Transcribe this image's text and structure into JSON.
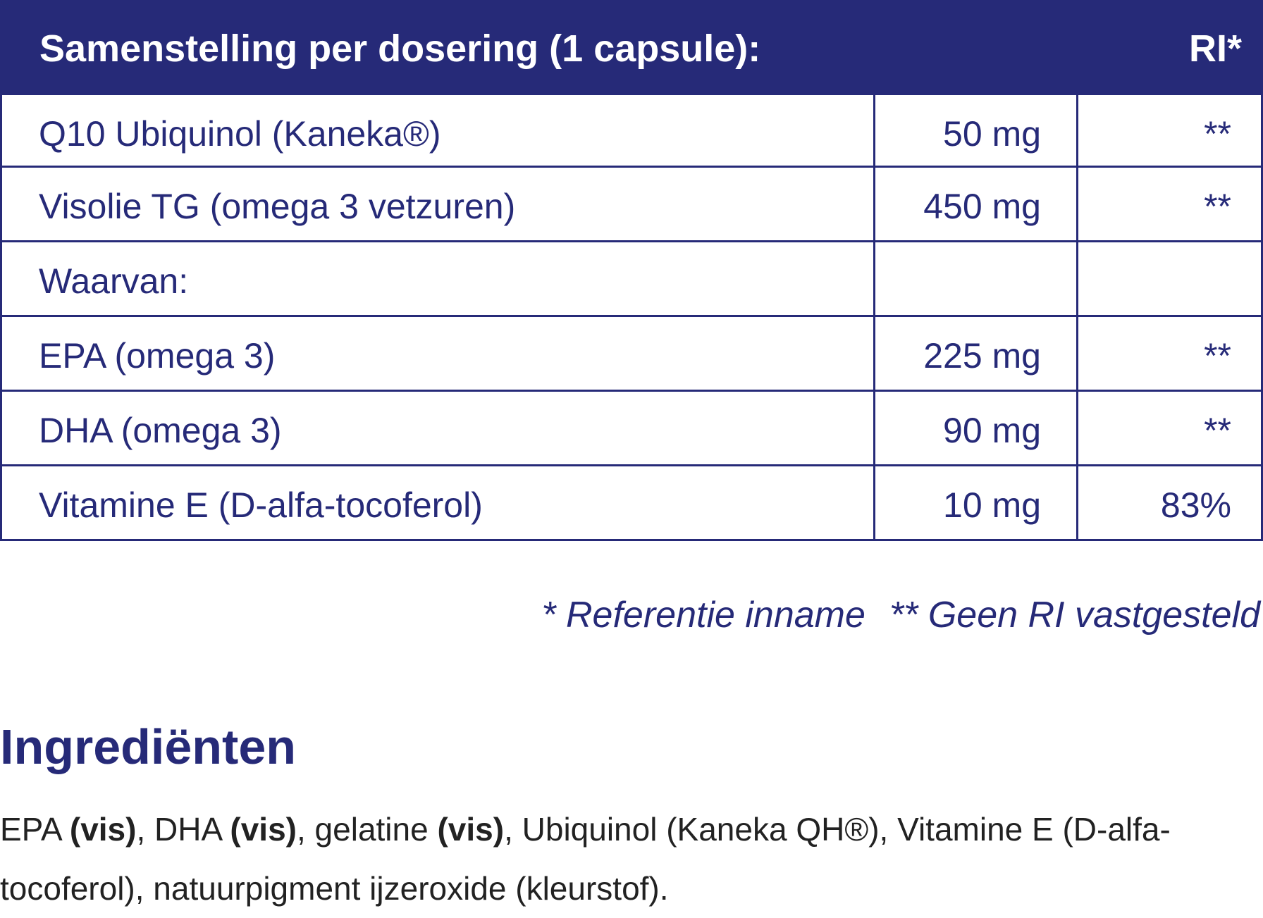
{
  "table": {
    "header": {
      "name": "Samenstelling per dosering (1 capsule):",
      "ri": "RI*"
    },
    "rows": [
      {
        "name": "Q10 Ubiquinol (Kaneka®)",
        "amount": "50 mg",
        "ri": "**"
      },
      {
        "name": "Visolie TG (omega 3 vetzuren)",
        "amount": "450 mg",
        "ri": "**"
      },
      {
        "name": "Waarvan:"
      },
      {
        "name": "EPA (omega 3)",
        "amount": "225 mg",
        "ri": "**"
      },
      {
        "name": "DHA (omega 3)",
        "amount": "90 mg",
        "ri": "**"
      },
      {
        "name": "Vitamine E (D-alfa-tocoferol)",
        "amount": "10 mg",
        "ri": "83%"
      }
    ]
  },
  "footnotes": [
    "* Referentie inname",
    "** Geen RI vastgesteld"
  ],
  "ingredients": {
    "title": "Ingrediënten",
    "parts": [
      {
        "text": "EPA "
      },
      {
        "text": "(vis)",
        "bold": true
      },
      {
        "text": ", DHA "
      },
      {
        "text": "(vis)",
        "bold": true
      },
      {
        "text": ", gelatine "
      },
      {
        "text": "(vis)",
        "bold": true
      },
      {
        "text": ", Ubiquinol (Kaneka QH®), Vitamine E (D-alfa-tocoferol), natuurpigment ijzeroxide (kleurstof)."
      }
    ]
  }
}
